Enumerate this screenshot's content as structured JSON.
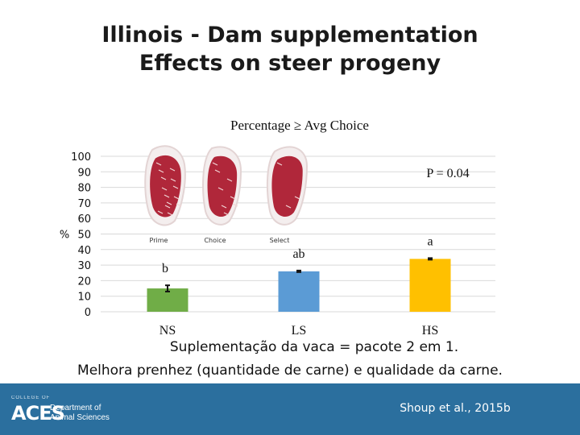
{
  "slide": {
    "title_line1": "Illinois - Dam supplementation",
    "title_line2": "Effects on steer progeny",
    "caption_line1": "Suplementação da vaca = pacote 2 em 1.",
    "caption_line2": "Melhora prenhez (quantidade de carne) e qualidade da carne.",
    "citation": "Shoup et al., 2015b"
  },
  "footer": {
    "logo_small": "COLLEGE OF",
    "logo_aces": "ACES",
    "logo_dept_line1": "Department of",
    "logo_dept_line2": "Animal Sciences"
  },
  "meat_images": [
    {
      "label": "Prime"
    },
    {
      "label": "Choice"
    },
    {
      "label": "Select"
    }
  ],
  "colors": {
    "NS": "#70ad47",
    "LS": "#5b9bd5",
    "HS": "#ffc000",
    "grid": "#d9d9d9",
    "meat": "#b0273a",
    "marbling": "#f2d6d6"
  },
  "chart_data": {
    "type": "bar",
    "title": "Percentage ≥ Avg Choice",
    "ylabel": "%",
    "xlabel": "",
    "ylim": [
      0,
      100
    ],
    "yticks": [
      100,
      90,
      80,
      70,
      60,
      50,
      40,
      30,
      20,
      10,
      0
    ],
    "grid": true,
    "categories": [
      "NS",
      "LS",
      "HS"
    ],
    "values": [
      15,
      26,
      34
    ],
    "errors": [
      2,
      0.5,
      0.5
    ],
    "significance_letters": [
      "b",
      "ab",
      "a"
    ],
    "annotation": "P = 0.04"
  }
}
